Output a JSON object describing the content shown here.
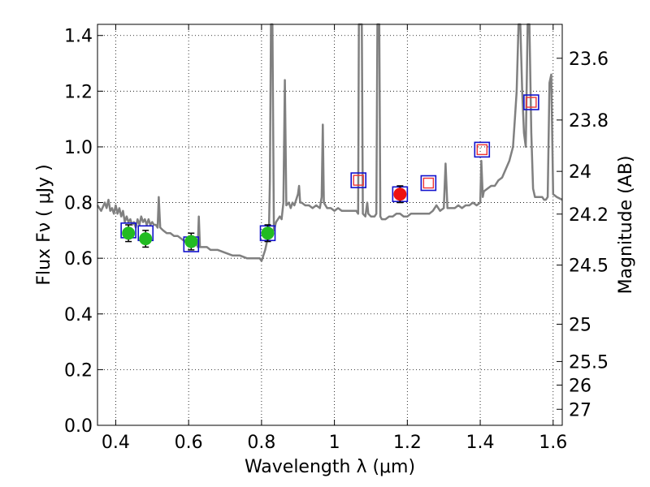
{
  "chart_data": {
    "type": "scatter",
    "title": "",
    "xlabel": "Wavelength  λ (μm)",
    "ylabel": "Flux  Fν  ( μJy )",
    "ylabel_right": "Magnitude (AB)",
    "xlim": [
      0.35,
      1.625
    ],
    "ylim": [
      0.0,
      1.44
    ],
    "x_ticks": [
      0.4,
      0.6,
      0.8,
      1.0,
      1.2,
      1.4,
      1.6
    ],
    "x_tick_labels": [
      "0.4",
      "0.6",
      "0.8",
      "1",
      "1.2",
      "1.4",
      "1.6"
    ],
    "y_ticks": [
      0.0,
      0.2,
      0.4,
      0.6,
      0.8,
      1.0,
      1.2,
      1.4
    ],
    "y_tick_labels": [
      "0.0",
      "0.2",
      "0.4",
      "0.6",
      "0.8",
      "1.0",
      "1.2",
      "1.4"
    ],
    "mag_ticks": [
      23.6,
      23.8,
      24,
      24.2,
      24.5,
      25,
      25.5,
      26,
      27
    ],
    "mag_tick_labels": [
      "23.6",
      "23.8",
      "24",
      "24.2",
      "24.5",
      "25",
      "25.5",
      "26",
      "27"
    ],
    "grid": true,
    "colors": {
      "spectrum": "#808080",
      "observed": "#22bb22",
      "highlight": "#ee1111",
      "model_box": "#1111cc",
      "upper_box": "#ee3333"
    },
    "series": [
      {
        "name": "model spectrum",
        "type": "line",
        "points": [
          [
            0.35,
            0.79
          ],
          [
            0.36,
            0.77
          ],
          [
            0.37,
            0.8
          ],
          [
            0.375,
            0.78
          ],
          [
            0.38,
            0.81
          ],
          [
            0.385,
            0.77
          ],
          [
            0.39,
            0.78
          ],
          [
            0.395,
            0.76
          ],
          [
            0.4,
            0.79
          ],
          [
            0.405,
            0.76
          ],
          [
            0.41,
            0.78
          ],
          [
            0.415,
            0.75
          ],
          [
            0.42,
            0.77
          ],
          [
            0.425,
            0.73
          ],
          [
            0.43,
            0.75
          ],
          [
            0.435,
            0.73
          ],
          [
            0.44,
            0.74
          ],
          [
            0.445,
            0.72
          ],
          [
            0.45,
            0.73
          ],
          [
            0.455,
            0.71
          ],
          [
            0.46,
            0.74
          ],
          [
            0.465,
            0.72
          ],
          [
            0.47,
            0.75
          ],
          [
            0.475,
            0.73
          ],
          [
            0.48,
            0.74
          ],
          [
            0.485,
            0.72
          ],
          [
            0.49,
            0.74
          ],
          [
            0.495,
            0.72
          ],
          [
            0.5,
            0.73
          ],
          [
            0.505,
            0.72
          ],
          [
            0.51,
            0.72
          ],
          [
            0.515,
            0.71
          ],
          [
            0.518,
            0.82
          ],
          [
            0.522,
            0.71
          ],
          [
            0.53,
            0.7
          ],
          [
            0.54,
            0.69
          ],
          [
            0.55,
            0.69
          ],
          [
            0.56,
            0.68
          ],
          [
            0.57,
            0.68
          ],
          [
            0.58,
            0.67
          ],
          [
            0.59,
            0.66
          ],
          [
            0.6,
            0.66
          ],
          [
            0.61,
            0.66
          ],
          [
            0.615,
            0.65
          ],
          [
            0.62,
            0.66
          ],
          [
            0.625,
            0.64
          ],
          [
            0.628,
            0.75
          ],
          [
            0.631,
            0.64
          ],
          [
            0.64,
            0.64
          ],
          [
            0.65,
            0.64
          ],
          [
            0.66,
            0.63
          ],
          [
            0.68,
            0.63
          ],
          [
            0.7,
            0.62
          ],
          [
            0.72,
            0.61
          ],
          [
            0.74,
            0.61
          ],
          [
            0.76,
            0.6
          ],
          [
            0.78,
            0.6
          ],
          [
            0.795,
            0.6
          ],
          [
            0.8,
            0.59
          ],
          [
            0.81,
            0.63
          ],
          [
            0.815,
            0.66
          ],
          [
            0.82,
            0.68
          ],
          [
            0.823,
            0.88
          ],
          [
            0.826,
            1.44
          ],
          [
            0.83,
            1.44
          ],
          [
            0.834,
            0.7
          ],
          [
            0.84,
            0.73
          ],
          [
            0.85,
            0.75
          ],
          [
            0.855,
            0.74
          ],
          [
            0.86,
            0.8
          ],
          [
            0.864,
            1.24
          ],
          [
            0.868,
            0.79
          ],
          [
            0.875,
            0.8
          ],
          [
            0.88,
            0.78
          ],
          [
            0.885,
            0.8
          ],
          [
            0.89,
            0.79
          ],
          [
            0.895,
            0.81
          ],
          [
            0.9,
            0.83
          ],
          [
            0.903,
            0.86
          ],
          [
            0.906,
            0.8
          ],
          [
            0.91,
            0.8
          ],
          [
            0.92,
            0.79
          ],
          [
            0.93,
            0.79
          ],
          [
            0.94,
            0.78
          ],
          [
            0.95,
            0.79
          ],
          [
            0.96,
            0.78
          ],
          [
            0.965,
            0.82
          ],
          [
            0.968,
            1.08
          ],
          [
            0.971,
            0.8
          ],
          [
            0.98,
            0.78
          ],
          [
            0.99,
            0.78
          ],
          [
            1.0,
            0.77
          ],
          [
            1.01,
            0.78
          ],
          [
            1.02,
            0.77
          ],
          [
            1.03,
            0.77
          ],
          [
            1.04,
            0.77
          ],
          [
            1.05,
            0.77
          ],
          [
            1.06,
            0.77
          ],
          [
            1.065,
            0.76
          ],
          [
            1.067,
            1.44
          ],
          [
            1.075,
            1.44
          ],
          [
            1.078,
            0.76
          ],
          [
            1.085,
            0.75
          ],
          [
            1.09,
            0.8
          ],
          [
            1.093,
            0.76
          ],
          [
            1.1,
            0.75
          ],
          [
            1.11,
            0.75
          ],
          [
            1.115,
            0.76
          ],
          [
            1.118,
            1.44
          ],
          [
            1.123,
            1.44
          ],
          [
            1.126,
            0.75
          ],
          [
            1.13,
            0.74
          ],
          [
            1.14,
            0.74
          ],
          [
            1.15,
            0.75
          ],
          [
            1.16,
            0.75
          ],
          [
            1.17,
            0.76
          ],
          [
            1.18,
            0.76
          ],
          [
            1.19,
            0.75
          ],
          [
            1.2,
            0.75
          ],
          [
            1.21,
            0.76
          ],
          [
            1.22,
            0.76
          ],
          [
            1.23,
            0.76
          ],
          [
            1.24,
            0.76
          ],
          [
            1.25,
            0.76
          ],
          [
            1.26,
            0.76
          ],
          [
            1.27,
            0.77
          ],
          [
            1.28,
            0.79
          ],
          [
            1.29,
            0.77
          ],
          [
            1.3,
            0.78
          ],
          [
            1.305,
            0.94
          ],
          [
            1.31,
            0.78
          ],
          [
            1.32,
            0.78
          ],
          [
            1.33,
            0.78
          ],
          [
            1.34,
            0.79
          ],
          [
            1.35,
            0.78
          ],
          [
            1.36,
            0.79
          ],
          [
            1.37,
            0.79
          ],
          [
            1.38,
            0.8
          ],
          [
            1.39,
            0.79
          ],
          [
            1.4,
            0.8
          ],
          [
            1.403,
            0.95
          ],
          [
            1.407,
            0.82
          ],
          [
            1.41,
            0.84
          ],
          [
            1.42,
            0.85
          ],
          [
            1.43,
            0.86
          ],
          [
            1.44,
            0.86
          ],
          [
            1.45,
            0.88
          ],
          [
            1.46,
            0.89
          ],
          [
            1.47,
            0.92
          ],
          [
            1.48,
            0.95
          ],
          [
            1.49,
            1.0
          ],
          [
            1.495,
            1.1
          ],
          [
            1.5,
            1.2
          ],
          [
            1.505,
            1.44
          ],
          [
            1.51,
            1.44
          ],
          [
            1.515,
            1.2
          ],
          [
            1.52,
            1.05
          ],
          [
            1.525,
            1.0
          ],
          [
            1.53,
            1.44
          ],
          [
            1.535,
            1.44
          ],
          [
            1.54,
            1.05
          ],
          [
            1.545,
            0.85
          ],
          [
            1.55,
            0.82
          ],
          [
            1.56,
            0.82
          ],
          [
            1.57,
            0.82
          ],
          [
            1.575,
            0.81
          ],
          [
            1.58,
            0.81
          ],
          [
            1.585,
            0.82
          ],
          [
            1.59,
            1.23
          ],
          [
            1.595,
            1.26
          ],
          [
            1.6,
            0.83
          ],
          [
            1.61,
            0.82
          ],
          [
            1.625,
            0.81
          ]
        ]
      },
      {
        "name": "observed photometry",
        "type": "scatter",
        "marker": "circle",
        "points": [
          {
            "x": 0.435,
            "y": 0.69,
            "err": 0.03
          },
          {
            "x": 0.482,
            "y": 0.67,
            "err": 0.03
          },
          {
            "x": 0.607,
            "y": 0.66,
            "err": 0.03
          },
          {
            "x": 0.817,
            "y": 0.69,
            "err": 0.03
          }
        ]
      },
      {
        "name": "highlighted band",
        "type": "scatter",
        "marker": "circle",
        "points": [
          {
            "x": 1.18,
            "y": 0.83,
            "err": 0.03
          }
        ]
      },
      {
        "name": "model photometry",
        "type": "scatter",
        "marker": "square",
        "points": [
          {
            "x": 0.435,
            "y": 0.7
          },
          {
            "x": 0.482,
            "y": 0.69
          },
          {
            "x": 0.607,
            "y": 0.65
          },
          {
            "x": 0.817,
            "y": 0.69
          },
          {
            "x": 1.066,
            "y": 0.88
          },
          {
            "x": 1.18,
            "y": 0.83
          },
          {
            "x": 1.258,
            "y": 0.87
          },
          {
            "x": 1.405,
            "y": 0.99
          },
          {
            "x": 1.54,
            "y": 1.16
          }
        ]
      },
      {
        "name": "unobserved bands",
        "type": "scatter",
        "marker": "open-square",
        "points": [
          {
            "x": 1.066,
            "y": 0.88
          },
          {
            "x": 1.258,
            "y": 0.87
          },
          {
            "x": 1.405,
            "y": 0.99
          },
          {
            "x": 1.54,
            "y": 1.16
          }
        ]
      }
    ]
  }
}
